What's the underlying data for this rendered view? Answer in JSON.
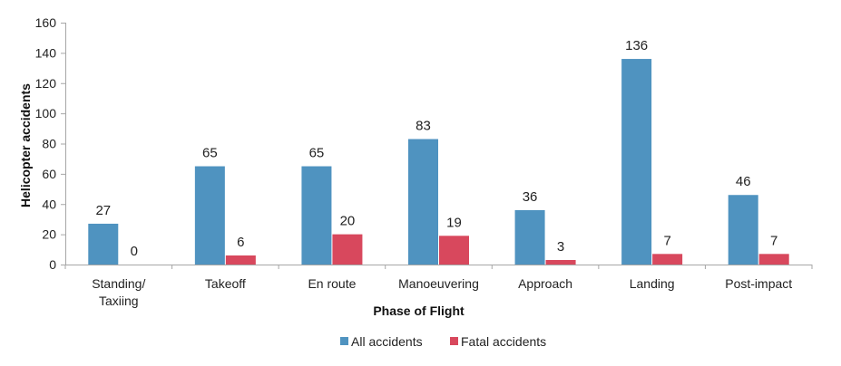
{
  "chart_data": {
    "type": "bar",
    "categories": [
      [
        "Standing/",
        "Taxiing"
      ],
      [
        "Takeoff"
      ],
      [
        "En route"
      ],
      [
        "Manoeuvering"
      ],
      [
        "Approach"
      ],
      [
        "Landing"
      ],
      [
        "Post-impact"
      ]
    ],
    "series": [
      {
        "name": "All accidents",
        "color": "#4F93C0",
        "values": [
          27,
          65,
          65,
          83,
          36,
          136,
          46
        ]
      },
      {
        "name": "Fatal accidents",
        "color": "#D8485D",
        "values": [
          0,
          6,
          20,
          19,
          3,
          7,
          7
        ]
      }
    ],
    "xlabel": "Phase of Flight",
    "ylabel": "Helicopter accidents",
    "ylim": [
      0,
      160
    ],
    "yticks": [
      0,
      20,
      40,
      60,
      80,
      100,
      120,
      140,
      160
    ],
    "grid": false,
    "legend_position": "bottom-center",
    "data_labels": true
  }
}
